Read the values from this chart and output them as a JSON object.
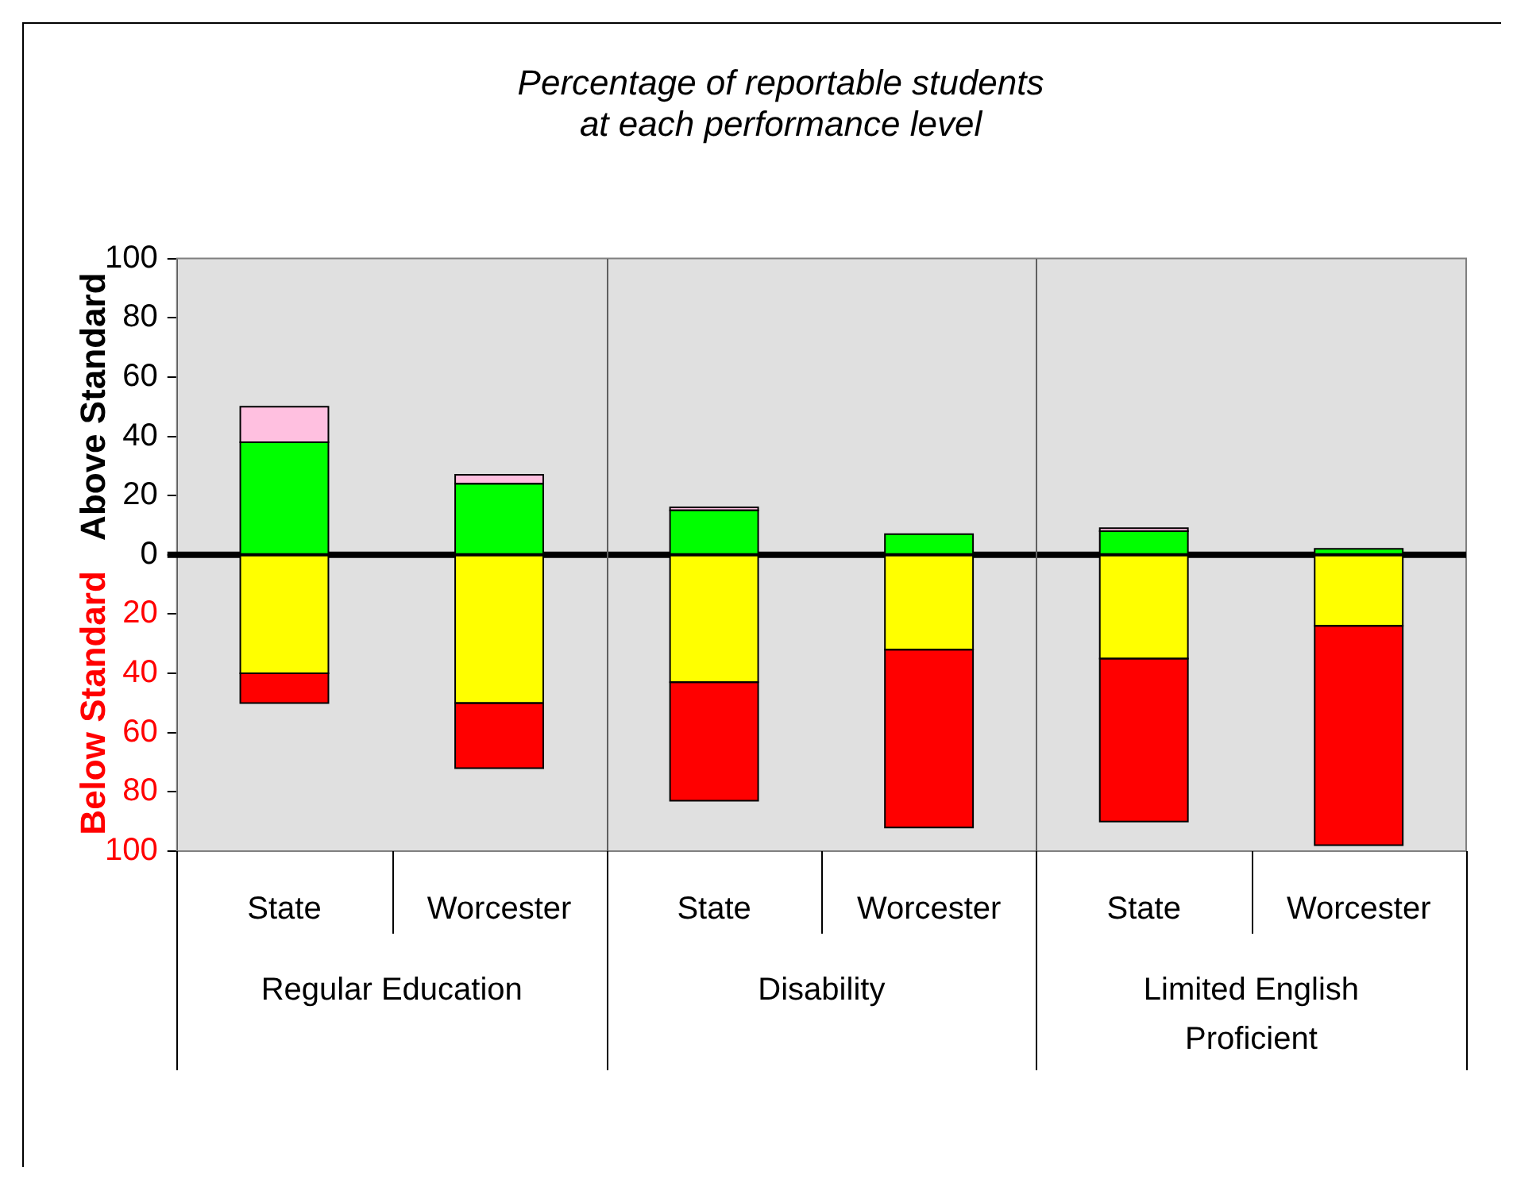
{
  "chart_data": {
    "type": "bar",
    "title": "Percentage of reportable students\nat each performance level",
    "ylabel": "Above Standard",
    "annotations": [
      "Below Standard",
      "Regular Education",
      "Disability",
      "Limited English Proficient"
    ],
    "categories": [
      "State",
      "Worcester",
      "State",
      "Worcester",
      "State",
      "Worcester"
    ],
    "stacked": true,
    "series": [
      {
        "color": "#00ff00",
        "values": [
          38,
          24,
          15,
          7,
          8,
          2
        ]
      },
      {
        "color": "#ffc0e0",
        "values": [
          12,
          3,
          1,
          null,
          1,
          null
        ]
      },
      {
        "color": "#ffff00",
        "values": [
          -40,
          -50,
          -43,
          -32,
          -35,
          -24
        ]
      },
      {
        "color": "#ff0000",
        "values": [
          -10,
          -22,
          -40,
          -60,
          -55,
          -74
        ]
      }
    ],
    "ylim": [
      -100,
      100
    ],
    "yticks": [
      {
        "value": -100,
        "label": "100"
      },
      {
        "value": -80,
        "label": "80"
      },
      {
        "value": -60,
        "label": "60"
      },
      {
        "value": -40,
        "label": "40"
      },
      {
        "value": -20,
        "label": "20"
      },
      0,
      20,
      40,
      60,
      80,
      100
    ],
    "ref_lines": [
      {
        "axis": "y",
        "value": 0,
        "color": "#000000"
      }
    ],
    "grid": false,
    "legend": false
  }
}
